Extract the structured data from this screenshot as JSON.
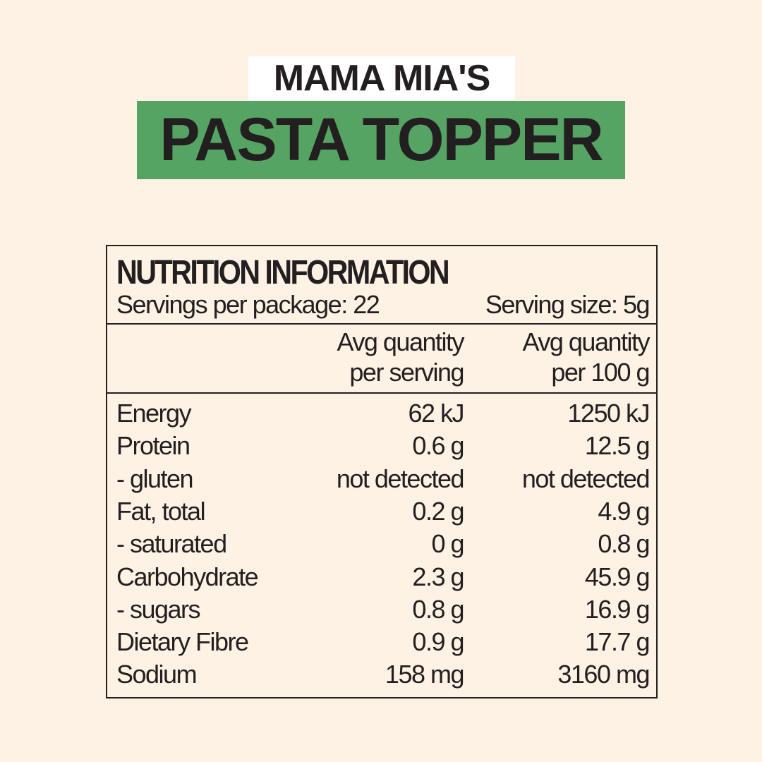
{
  "header": {
    "brand": "MAMA MIA'S",
    "product": "PASTA TOPPER",
    "colors": {
      "background": "#fdf2e4",
      "brand_box": "#ffffff",
      "product_box": "#55a463",
      "text": "#231f20"
    }
  },
  "nutrition": {
    "title": "NUTRITION INFORMATION",
    "servings_per_package": "Servings per package: 22",
    "serving_size": "Serving size: 5g",
    "columns": [
      {
        "line1": "Avg quantity",
        "line2": "per serving"
      },
      {
        "line1": "Avg quantity",
        "line2": "per 100 g"
      }
    ],
    "rows": [
      {
        "label": "Energy",
        "per_serving": "62 kJ",
        "per_100g": "1250 kJ"
      },
      {
        "label": "Protein",
        "per_serving": "0.6 g",
        "per_100g": "12.5 g"
      },
      {
        "label": "- gluten",
        "per_serving": "not detected",
        "per_100g": "not detected"
      },
      {
        "label": "Fat, total",
        "per_serving": "0.2 g",
        "per_100g": "4.9 g"
      },
      {
        "label": "- saturated",
        "per_serving": "0 g",
        "per_100g": "0.8 g"
      },
      {
        "label": "Carbohydrate",
        "per_serving": "2.3 g",
        "per_100g": "45.9 g"
      },
      {
        "label": "- sugars",
        "per_serving": "0.8 g",
        "per_100g": "16.9 g"
      },
      {
        "label": "Dietary Fibre",
        "per_serving": "0.9 g",
        "per_100g": "17.7 g"
      },
      {
        "label": "Sodium",
        "per_serving": "158 mg",
        "per_100g": "3160 mg"
      }
    ]
  }
}
